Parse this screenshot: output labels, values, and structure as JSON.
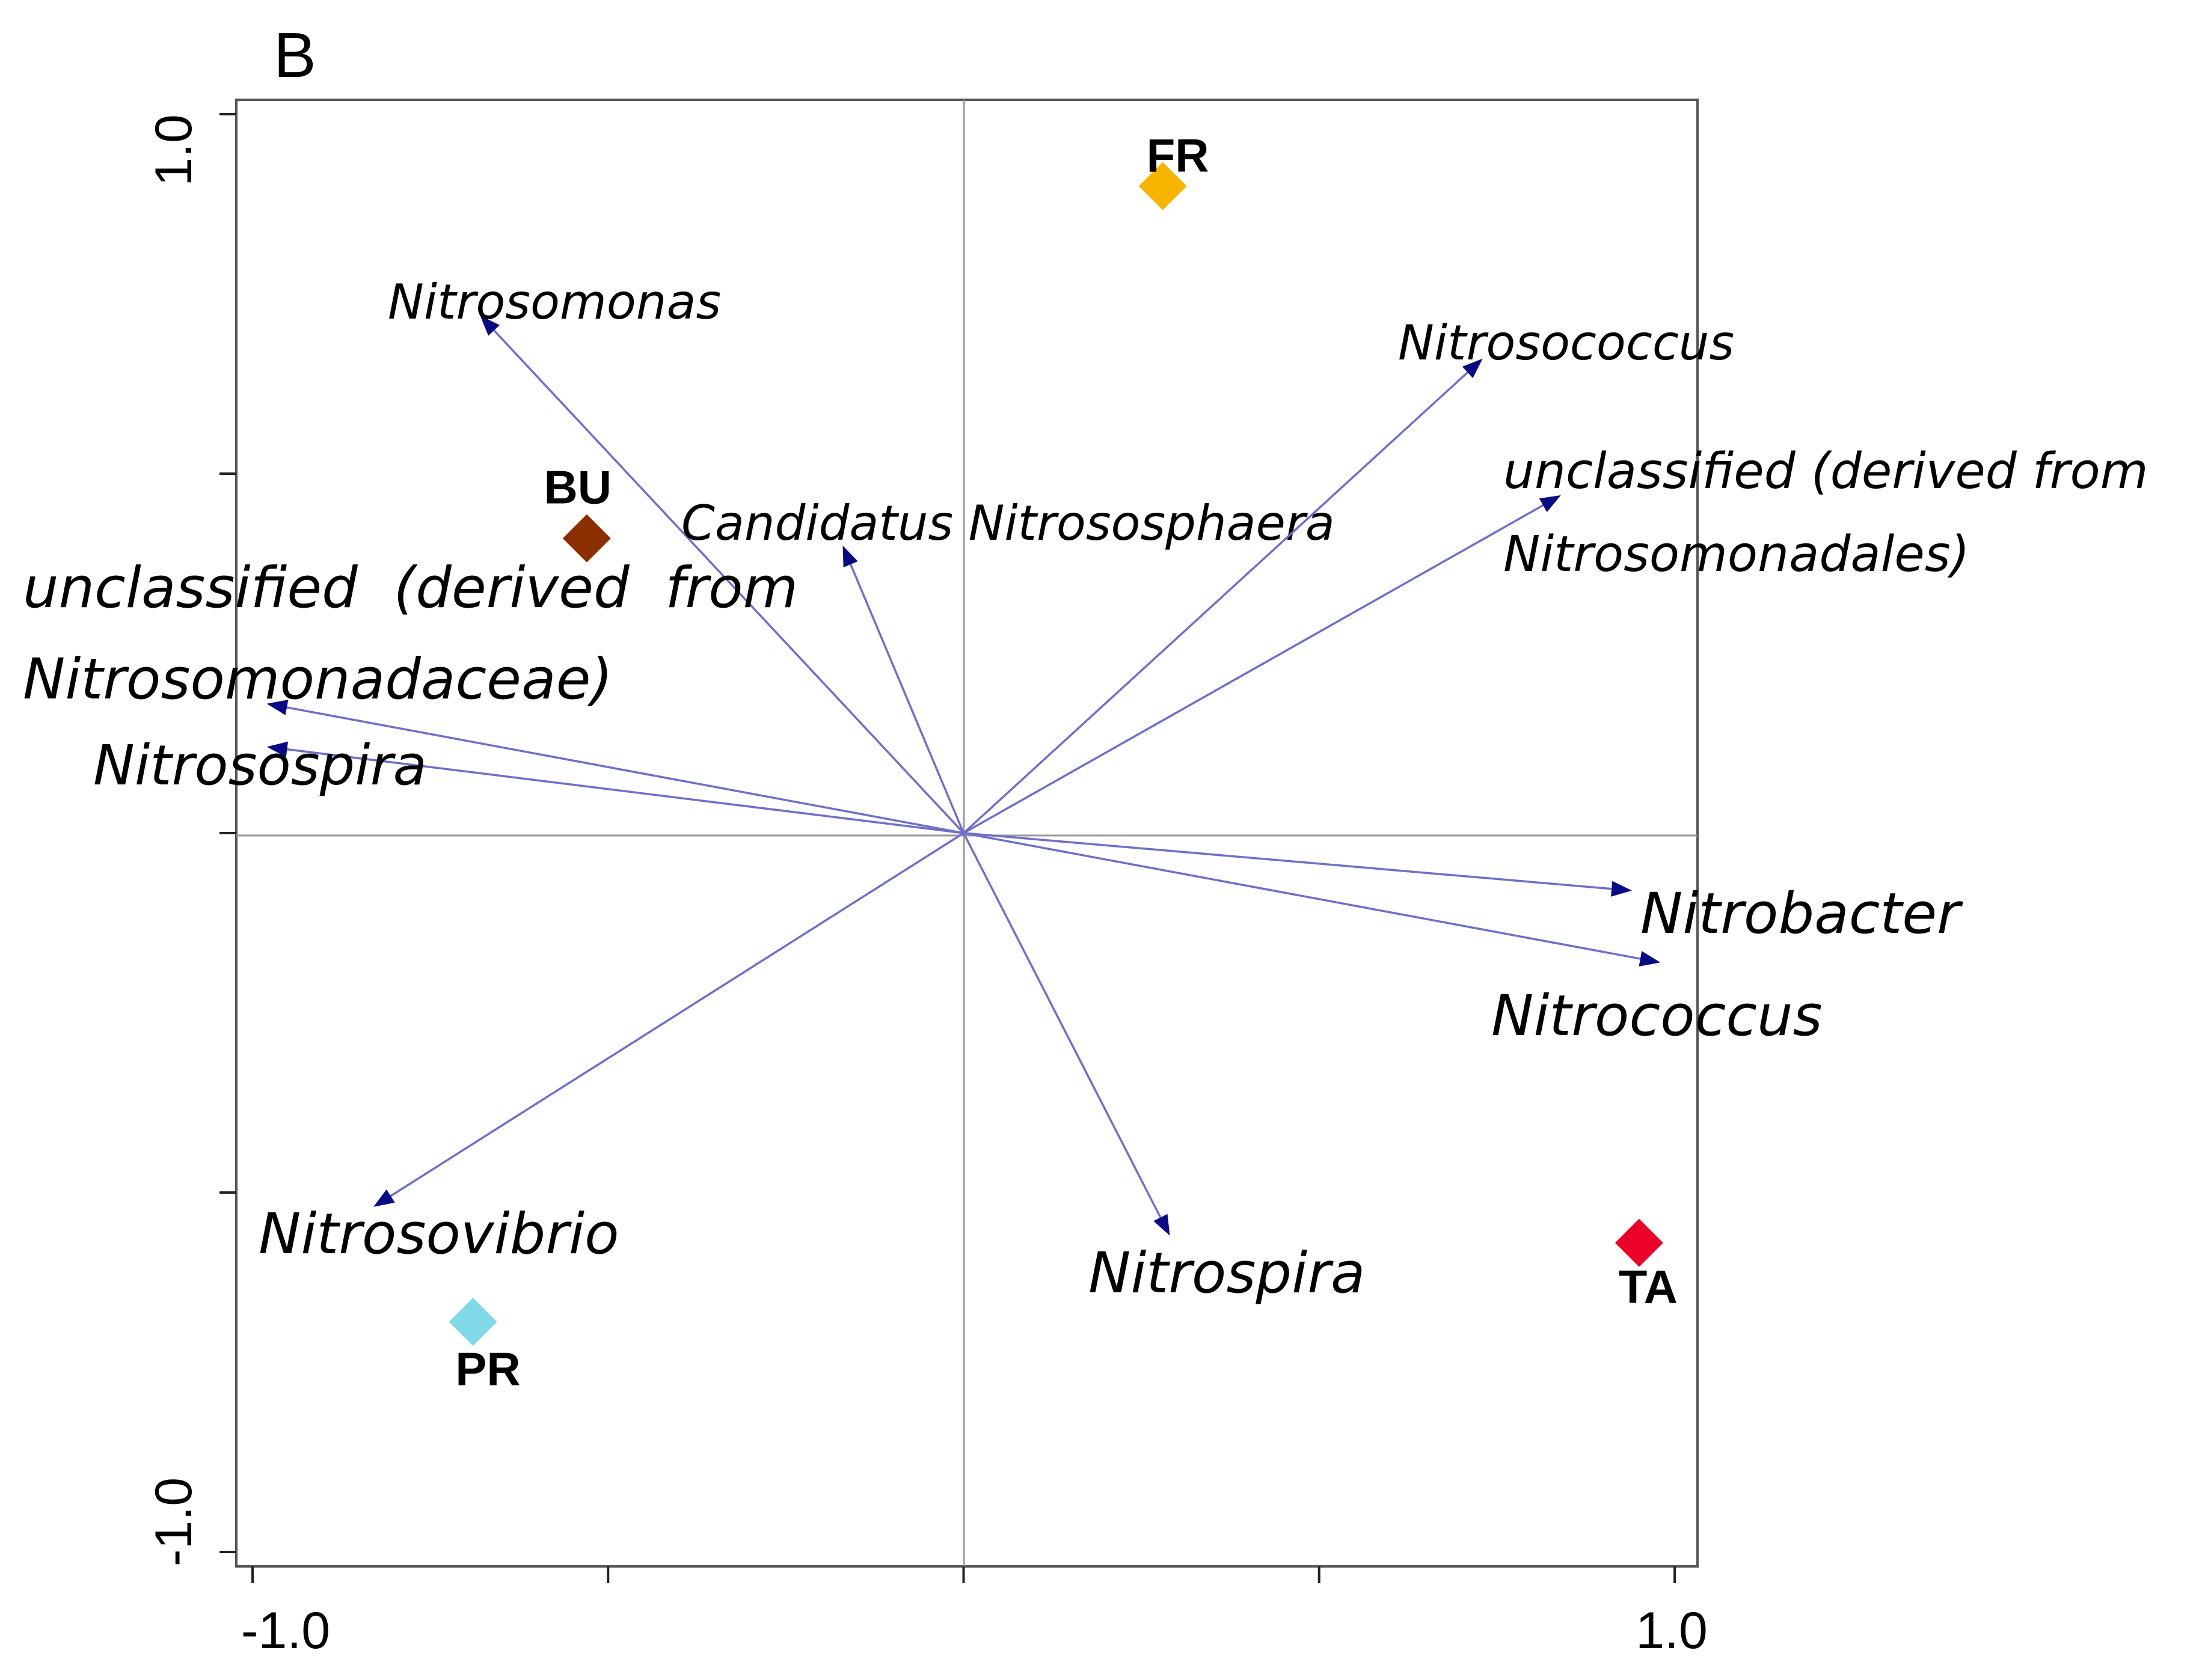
{
  "chart_data": {
    "type": "scatter",
    "subtype": "ordination-biplot",
    "panel_label": "B",
    "title": "",
    "xlabel": "",
    "ylabel": "",
    "xlim": [
      -1.0,
      1.0
    ],
    "ylim": [
      -1.0,
      1.0
    ],
    "x_tick_labels": [
      "-1.0",
      "1.0"
    ],
    "y_tick_labels": [
      "-1.0",
      "1.0"
    ],
    "zero_lines": true,
    "species_arrows": [
      {
        "name": "Nitrosomonas",
        "lines": [
          "Nitrosomonas"
        ],
        "x": -0.68,
        "y": 0.72
      },
      {
        "name": "Candidatus Nitrososphaera",
        "lines": [
          "Candidatus Nitrososphaera"
        ],
        "x": -0.17,
        "y": 0.4
      },
      {
        "name": "Nitrosococcus",
        "lines": [
          "Nitrosococcus"
        ],
        "x": 0.73,
        "y": 0.66
      },
      {
        "name": "unclassified (derived from Nitrosomonadales)",
        "lines": [
          "unclassified (derived from",
          "Nitrosomonadales)"
        ],
        "x": 0.84,
        "y": 0.47
      },
      {
        "name": "unclassified (derived from Nitrosomonadaceae)",
        "lines": [
          "unclassified  (derived  from",
          "Nitrosomonadaceae)"
        ],
        "x": -0.98,
        "y": 0.18
      },
      {
        "name": "Nitrosospira",
        "lines": [
          "Nitrosospira"
        ],
        "x": -0.98,
        "y": 0.12
      },
      {
        "name": "Nitrobacter",
        "lines": [
          "Nitrobacter"
        ],
        "x": 0.94,
        "y": -0.08
      },
      {
        "name": "Nitrococcus",
        "lines": [
          "Nitrococcus"
        ],
        "x": 0.98,
        "y": -0.18
      },
      {
        "name": "Nitrosovibrio",
        "lines": [
          "Nitrosovibrio"
        ],
        "x": -0.83,
        "y": -0.52
      },
      {
        "name": "Nitrospira",
        "lines": [
          "Nitrospira"
        ],
        "x": 0.29,
        "y": -0.56
      }
    ],
    "sites": [
      {
        "name": "FR",
        "x": 0.28,
        "y": 0.9,
        "color": "#f7b500"
      },
      {
        "name": "BU",
        "x": -0.53,
        "y": 0.41,
        "color": "#8b2e00"
      },
      {
        "name": "TA",
        "x": 0.95,
        "y": -0.57,
        "color": "#ea0029"
      },
      {
        "name": "PR",
        "x": -0.69,
        "y": -0.68,
        "color": "#7fd9e6"
      }
    ],
    "colors": {
      "arrow_line": "#6f6fc8",
      "arrow_head": "#0a0a82",
      "frame": "#555555",
      "zero_line": "#999999"
    }
  }
}
